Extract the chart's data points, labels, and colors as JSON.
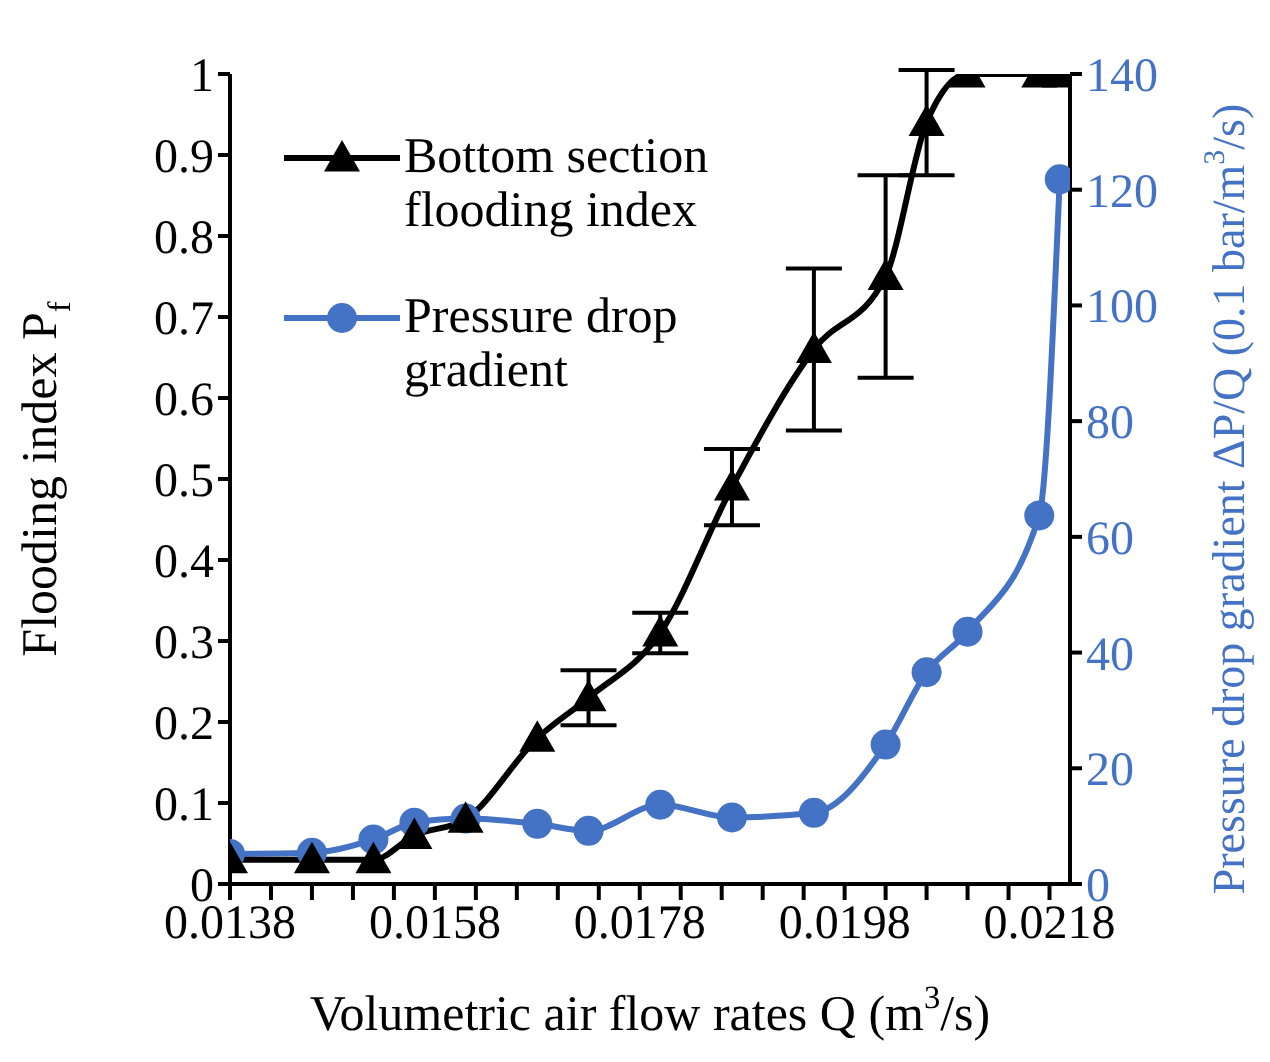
{
  "chart_data": {
    "type": "line",
    "xlabel": "Volumetric air flow rates Q (m$^{3}$/s)",
    "ylabel": "Flooding index P$_{f}$",
    "y2label": "Pressure drop gradient ΔP/Q (0.1 bar/m$^{3}$/s)",
    "x": [
      0.0138,
      0.0146,
      0.0152,
      0.0156,
      0.0161,
      0.0168,
      0.0173,
      0.018,
      0.0187,
      0.0195,
      0.0202,
      0.0206,
      0.021,
      0.0217,
      0.0219
    ],
    "series": [
      {
        "name": "Bottom section flooding index",
        "color": "#000000",
        "marker": "triangle",
        "values": [
          0.03,
          0.03,
          0.03,
          0.06,
          0.08,
          0.18,
          0.23,
          0.31,
          0.49,
          0.66,
          0.75,
          0.94,
          1.0,
          1.0,
          1.0
        ],
        "errors": [
          null,
          null,
          null,
          null,
          null,
          null,
          0.034,
          0.025,
          0.047,
          0.1,
          0.125,
          0.065,
          null,
          null,
          null
        ]
      },
      {
        "name": "Pressure drop gradient",
        "color": "#4472c4",
        "marker": "circle",
        "axis": "y2",
        "values": [
          5.2,
          5.4,
          7.7,
          10.6,
          11.3,
          10.4,
          9.2,
          13.7,
          11.5,
          12.3,
          24.1,
          36.6,
          43.6,
          63.7,
          121.8
        ]
      }
    ],
    "xlim": [
      0.0138,
      0.022
    ],
    "xticks": [
      0.0138,
      {
        "value": 0.0142,
        "label": null
      },
      {
        "value": 0.0146,
        "label": null
      },
      {
        "value": 0.015,
        "label": null
      },
      {
        "value": 0.0154,
        "label": null
      },
      0.0158,
      {
        "value": 0.0162,
        "label": null
      },
      {
        "value": 0.0166,
        "label": null
      },
      {
        "value": 0.017,
        "label": null
      },
      {
        "value": 0.0174,
        "label": null
      },
      0.0178,
      {
        "value": 0.0182,
        "label": null
      },
      {
        "value": 0.0186,
        "label": null
      },
      {
        "value": 0.019,
        "label": null
      },
      {
        "value": 0.0194,
        "label": null
      },
      0.0198,
      {
        "value": 0.0202,
        "label": null
      },
      {
        "value": 0.0206,
        "label": null
      },
      {
        "value": 0.021,
        "label": null
      },
      {
        "value": 0.0214,
        "label": null
      },
      0.0218
    ],
    "ylim": [
      0,
      1
    ],
    "yticks": [
      0,
      0.1,
      0.2,
      0.3,
      0.4,
      0.5,
      0.6,
      0.7,
      0.8,
      0.9,
      1
    ],
    "y2lim": [
      0,
      140
    ],
    "y2ticks": [
      0,
      20,
      40,
      60,
      80,
      100,
      120,
      140
    ],
    "grid": false,
    "legend": "top left",
    "line_style": "solid"
  }
}
